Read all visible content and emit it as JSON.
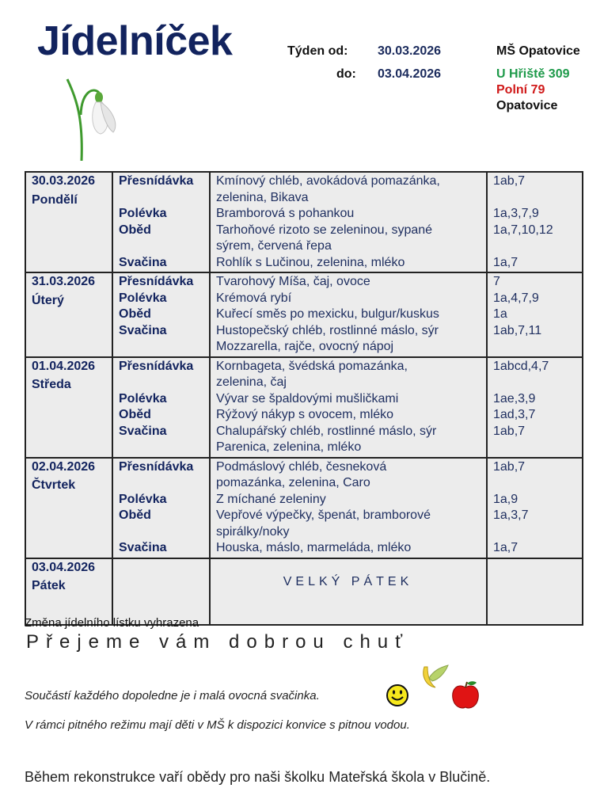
{
  "title": "Jídelníček",
  "week": {
    "from_label": "Týden od:",
    "from": "30.03.2026",
    "to_label": "do:",
    "to": "03.04.2026"
  },
  "school": {
    "name": "MŠ Opatovice",
    "address1": "U Hřiště 309",
    "address2": "Polní 79",
    "city": "Opatovice",
    "colors": {
      "address1": "#1e9a4a",
      "address2": "#d01a1a"
    }
  },
  "days": [
    {
      "date": "30.03.2026",
      "name": "Pondělí",
      "meals": [
        {
          "label": "Přesnídávka",
          "dish_lines": [
            "Kmínový chléb, avokádová pomazánka,",
            "zelenina, Bikava"
          ],
          "allergens": "1ab,7"
        },
        {
          "label": "Polévka",
          "dish_lines": [
            "Bramborová s pohankou"
          ],
          "allergens": "1a,3,7,9"
        },
        {
          "label": "Oběd",
          "dish_lines": [
            "Tarhoňové rizoto se zeleninou, sypané",
            "sýrem, červená řepa"
          ],
          "allergens": "1a,7,10,12"
        },
        {
          "label": "Svačina",
          "dish_lines": [
            "Rohlík s Lučinou, zelenina, mléko"
          ],
          "allergens": "1a,7"
        }
      ]
    },
    {
      "date": "31.03.2026",
      "name": "Úterý",
      "meals": [
        {
          "label": "Přesnídávka",
          "dish_lines": [
            "Tvarohový Míša, čaj, ovoce"
          ],
          "allergens": "7"
        },
        {
          "label": "Polévka",
          "dish_lines": [
            "Krémová rybí"
          ],
          "allergens": "1a,4,7,9"
        },
        {
          "label": "Oběd",
          "dish_lines": [
            "Kuřecí směs po mexicku, bulgur/kuskus"
          ],
          "allergens": "1a"
        },
        {
          "label": "Svačina",
          "dish_lines": [
            "Hustopečský chléb, rostlinné máslo, sýr",
            "Mozzarella, rajče, ovocný nápoj"
          ],
          "allergens": "1ab,7,11"
        }
      ]
    },
    {
      "date": "01.04.2026",
      "name": "Středa",
      "meals": [
        {
          "label": "Přesnídávka",
          "dish_lines": [
            "Kornbageta, švédská pomazánka,",
            "zelenina, čaj"
          ],
          "allergens": "1abcd,4,7"
        },
        {
          "label": "Polévka",
          "dish_lines": [
            "Vývar se špaldovými mušličkami"
          ],
          "allergens": "1ae,3,9"
        },
        {
          "label": "Oběd",
          "dish_lines": [
            "Rýžový nákyp s ovocem, mléko"
          ],
          "allergens": "1ad,3,7"
        },
        {
          "label": "Svačina",
          "dish_lines": [
            "Chalupářský chléb, rostlinné máslo, sýr",
            "Parenica, zelenina, mléko"
          ],
          "allergens": "1ab,7"
        }
      ]
    },
    {
      "date": "02.04.2026",
      "name": "Čtvrtek",
      "meals": [
        {
          "label": "Přesnídávka",
          "dish_lines": [
            "Podmáslový chléb, česneková",
            "pomazánka, zelenina, Caro"
          ],
          "allergens": "1ab,7"
        },
        {
          "label": "Polévka",
          "dish_lines": [
            "Z míchané zeleniny"
          ],
          "allergens": "1a,9"
        },
        {
          "label": "Oběd",
          "dish_lines": [
            "Vepřové výpečky, špenát, bramborové",
            "spirálky/noky"
          ],
          "allergens": "1a,3,7"
        },
        {
          "label": "Svačina",
          "dish_lines": [
            "Houska, máslo, marmeláda, mléko"
          ],
          "allergens": "1a,7"
        }
      ]
    }
  ],
  "holiday": {
    "date": "03.04.2026",
    "name": "Pátek",
    "text": "VELKÝ PÁTEK"
  },
  "footer": {
    "change_note": "Změna jídelního lístku vyhrazena",
    "wish": "Přejeme vám dobrou chuť",
    "fruit_note": "Součástí každého dopoledne je i malá ovocná svačinka.",
    "water_note": "V rámci pitného režimu mají děti v MŠ k dispozici konvice s pitnou vodou.",
    "reconstruction_note": "Během rekonstrukce vaří obědy pro naši školku Mateřská škola v Blučině."
  }
}
